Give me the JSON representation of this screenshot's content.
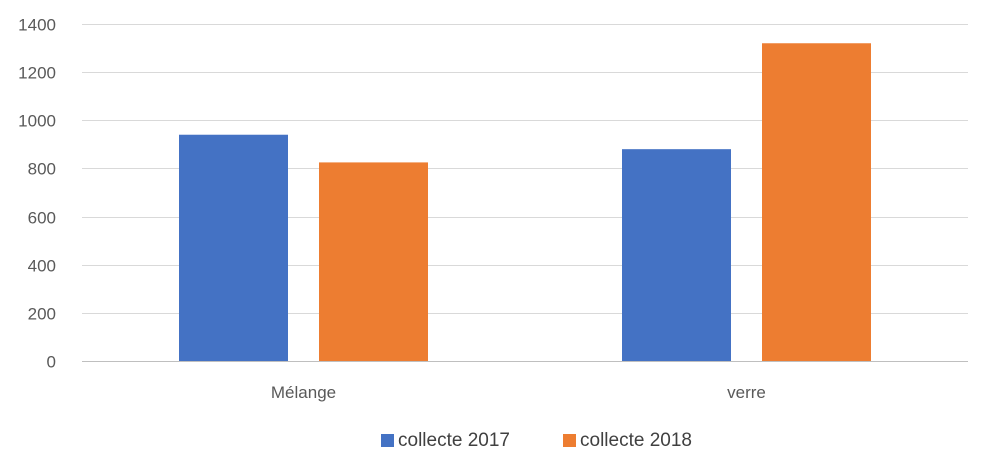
{
  "chart_data": {
    "type": "bar",
    "title": "",
    "xlabel": "",
    "ylabel": "",
    "categories": [
      "Mélange",
      "verre"
    ],
    "series": [
      {
        "name": "collecte 2017",
        "values": [
          940,
          880
        ],
        "color": "#4472C4"
      },
      {
        "name": "collecte 2018",
        "values": [
          825,
          1320
        ],
        "color": "#ED7D31"
      }
    ],
    "ylim": [
      0,
      1400
    ],
    "yticks": [
      0,
      200,
      400,
      600,
      800,
      1000,
      1200,
      1400
    ],
    "grid": true,
    "legend_position": "bottom"
  }
}
